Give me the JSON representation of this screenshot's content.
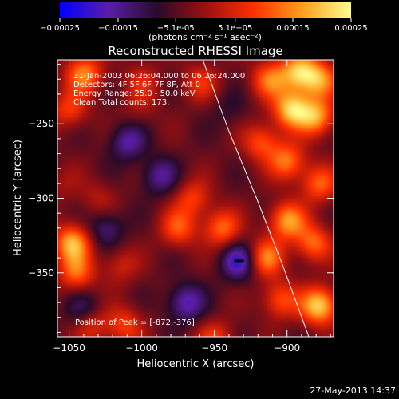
{
  "chart_data": {
    "type": "heatmap",
    "title": "Reconstructed RHESSI Image",
    "xlabel": "Heliocentric X (arcsec)",
    "ylabel": "Heliocentric Y (arcsec)",
    "xlim": [
      -1058,
      -868
    ],
    "ylim": [
      -393,
      -207
    ],
    "x_ticks": [
      -1050,
      -1000,
      -950,
      -900
    ],
    "y_ticks": [
      -250,
      -300,
      -350
    ],
    "colorbar": {
      "label": "(photons cm⁻² s⁻¹ asec⁻²)",
      "range": [
        -0.00025,
        0.00025
      ],
      "ticks": [
        -0.00025,
        -0.00015,
        -5.1e-05,
        5.1e-05,
        0.00015,
        0.00025
      ],
      "tick_labels": [
        "-0.00025",
        "-0.00015",
        "-5.1e-05",
        "5.1e-05",
        "0.00015",
        "0.00025"
      ],
      "colors": [
        "#0000ff",
        "#5a1ea8",
        "#2a0a2a",
        "#9a1010",
        "#ff3000",
        "#ffa020",
        "#ffff90"
      ]
    },
    "info_lines": [
      "31-Jan-2003 06:26:04.000 to 06:26:24.000",
      "Detectors: 4F 5F 6F 7F 8F, Att 0",
      "Energy Range: 25.0 - 50.0 keV",
      "Clean    Total counts: 173."
    ],
    "peak_label": "Position of Peak = [-872,-376]",
    "peak": [
      -872,
      -376
    ],
    "limb_curve": {
      "x": [
        -958,
        -940,
        -921,
        -903,
        -885
      ],
      "y": [
        -207,
        -255,
        -300,
        -345,
        -393
      ]
    },
    "marker": [
      -933,
      -342
    ],
    "blobs": [
      {
        "x": -1040,
        "y": -216,
        "v": 0.00018
      },
      {
        "x": -1050,
        "y": -240,
        "v": 0.00012
      },
      {
        "x": -1030,
        "y": -300,
        "v": 6e-05
      },
      {
        "x": -1048,
        "y": -330,
        "v": 0.00022
      },
      {
        "x": -1045,
        "y": -350,
        "v": 0.00015
      },
      {
        "x": -1015,
        "y": -345,
        "v": 8e-05
      },
      {
        "x": -1012,
        "y": -385,
        "v": 0.00012
      },
      {
        "x": -1000,
        "y": -222,
        "v": 8e-05
      },
      {
        "x": -1002,
        "y": -240,
        "v": 4e-05
      },
      {
        "x": -960,
        "y": -222,
        "v": 0.0001
      },
      {
        "x": -945,
        "y": -320,
        "v": 0.00016
      },
      {
        "x": -975,
        "y": -320,
        "v": 0.00014
      },
      {
        "x": -965,
        "y": -300,
        "v": 0.00012
      },
      {
        "x": -912,
        "y": -220,
        "v": 0.00016
      },
      {
        "x": -892,
        "y": -215,
        "v": 0.00022
      },
      {
        "x": -878,
        "y": -220,
        "v": 0.00018
      },
      {
        "x": -897,
        "y": -240,
        "v": 0.00024
      },
      {
        "x": -880,
        "y": -245,
        "v": 0.0002
      },
      {
        "x": -918,
        "y": -262,
        "v": 0.00014
      },
      {
        "x": -900,
        "y": -275,
        "v": 0.00017
      },
      {
        "x": -878,
        "y": -290,
        "v": 0.00015
      },
      {
        "x": -900,
        "y": -315,
        "v": 0.0002
      },
      {
        "x": -915,
        "y": -340,
        "v": 0.00018
      },
      {
        "x": -882,
        "y": -330,
        "v": 0.00016
      },
      {
        "x": -878,
        "y": -372,
        "v": 0.00025
      },
      {
        "x": -905,
        "y": -368,
        "v": 0.00014
      },
      {
        "x": -933,
        "y": -342,
        "v": -0.00016
      },
      {
        "x": -970,
        "y": -370,
        "v": -0.00014
      },
      {
        "x": -1040,
        "y": -375,
        "v": -9e-05
      },
      {
        "x": -1010,
        "y": -262,
        "v": -0.00012
      },
      {
        "x": -988,
        "y": -285,
        "v": -0.00011
      },
      {
        "x": -1025,
        "y": -320,
        "v": -0.0001
      },
      {
        "x": -950,
        "y": -395,
        "v": 0.00012
      },
      {
        "x": -1035,
        "y": -385,
        "v": 0.00011
      },
      {
        "x": -1055,
        "y": -290,
        "v": 4e-05
      },
      {
        "x": -940,
        "y": -240,
        "v": -4e-05
      }
    ]
  },
  "footer": {
    "timestamp": "27-May-2013 14:37"
  }
}
